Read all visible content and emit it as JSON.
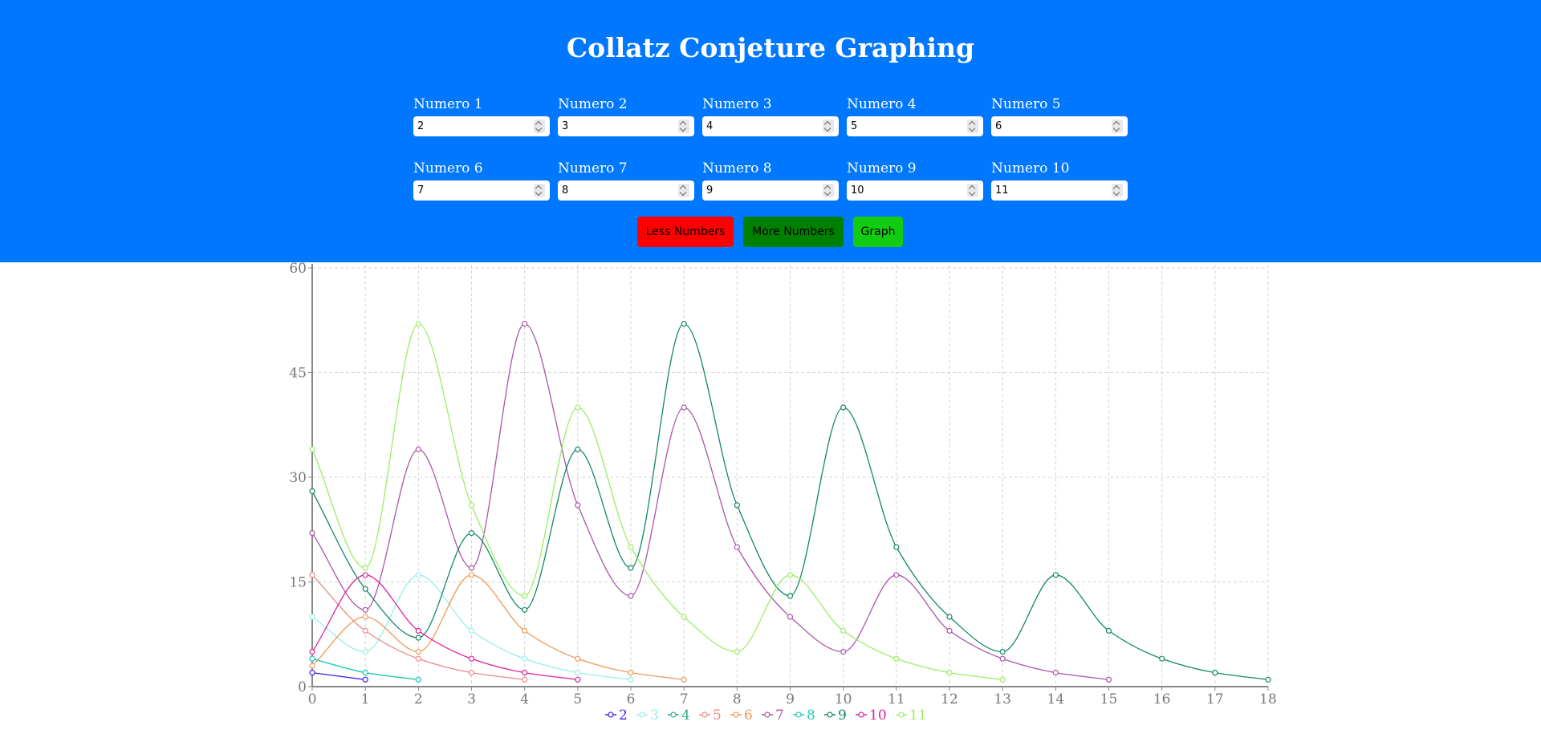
{
  "header": {
    "title": "Collatz Conjeture Graphing",
    "bg_color": "#0077ff"
  },
  "fields": [
    {
      "label": "Numero 1",
      "value": "2"
    },
    {
      "label": "Numero 2",
      "value": "3"
    },
    {
      "label": "Numero 3",
      "value": "4"
    },
    {
      "label": "Numero 4",
      "value": "5"
    },
    {
      "label": "Numero 5",
      "value": "6"
    },
    {
      "label": "Numero 6",
      "value": "7"
    },
    {
      "label": "Numero 7",
      "value": "8"
    },
    {
      "label": "Numero 8",
      "value": "9"
    },
    {
      "label": "Numero 9",
      "value": "10"
    },
    {
      "label": "Numero 10",
      "value": "11"
    }
  ],
  "buttons": {
    "less": {
      "label": "Less Numbers",
      "color": "#ff0000"
    },
    "more": {
      "label": "More Numbers",
      "color": "#008000"
    },
    "graph": {
      "label": "Graph",
      "color": "#11cc11"
    }
  },
  "chart_data": {
    "type": "line",
    "title": "",
    "xlabel": "",
    "ylabel": "",
    "x_ticks": [
      0,
      1,
      2,
      3,
      4,
      5,
      6,
      7,
      8,
      9,
      10,
      11,
      12,
      13,
      14,
      15,
      16,
      17,
      18
    ],
    "y_ticks": [
      0,
      15,
      30,
      45,
      60
    ],
    "xlim": [
      0,
      18
    ],
    "ylim": [
      0,
      60
    ],
    "grid": true,
    "legend_position": "bottom",
    "series": [
      {
        "name": "2",
        "color": "#4422ee",
        "values": [
          2,
          1
        ]
      },
      {
        "name": "3",
        "color": "#99eeee",
        "values": [
          10,
          5,
          16,
          8,
          4,
          2,
          1
        ]
      },
      {
        "name": "4",
        "color": "#33aa88",
        "values": [
          4,
          2,
          1
        ]
      },
      {
        "name": "5",
        "color": "#ee8888",
        "values": [
          16,
          8,
          4,
          2,
          1
        ]
      },
      {
        "name": "6",
        "color": "#ee9955",
        "values": [
          3,
          10,
          5,
          16,
          8,
          4,
          2,
          1
        ]
      },
      {
        "name": "7",
        "color": "#aa55aa",
        "values": [
          22,
          11,
          34,
          17,
          52,
          26,
          13,
          40,
          20,
          10,
          5,
          16,
          8,
          4,
          2,
          1
        ]
      },
      {
        "name": "8",
        "color": "#22ccbb",
        "values": [
          4,
          2,
          1
        ]
      },
      {
        "name": "9",
        "color": "#118866",
        "values": [
          28,
          14,
          7,
          22,
          11,
          34,
          17,
          52,
          26,
          13,
          40,
          20,
          10,
          5,
          16,
          8,
          4,
          2,
          1
        ]
      },
      {
        "name": "10",
        "color": "#dd2299",
        "values": [
          5,
          16,
          8,
          4,
          2,
          1
        ]
      },
      {
        "name": "11",
        "color": "#99ee66",
        "values": [
          34,
          17,
          52,
          26,
          13,
          40,
          20,
          10,
          5,
          16,
          8,
          4,
          2,
          1
        ]
      }
    ]
  }
}
